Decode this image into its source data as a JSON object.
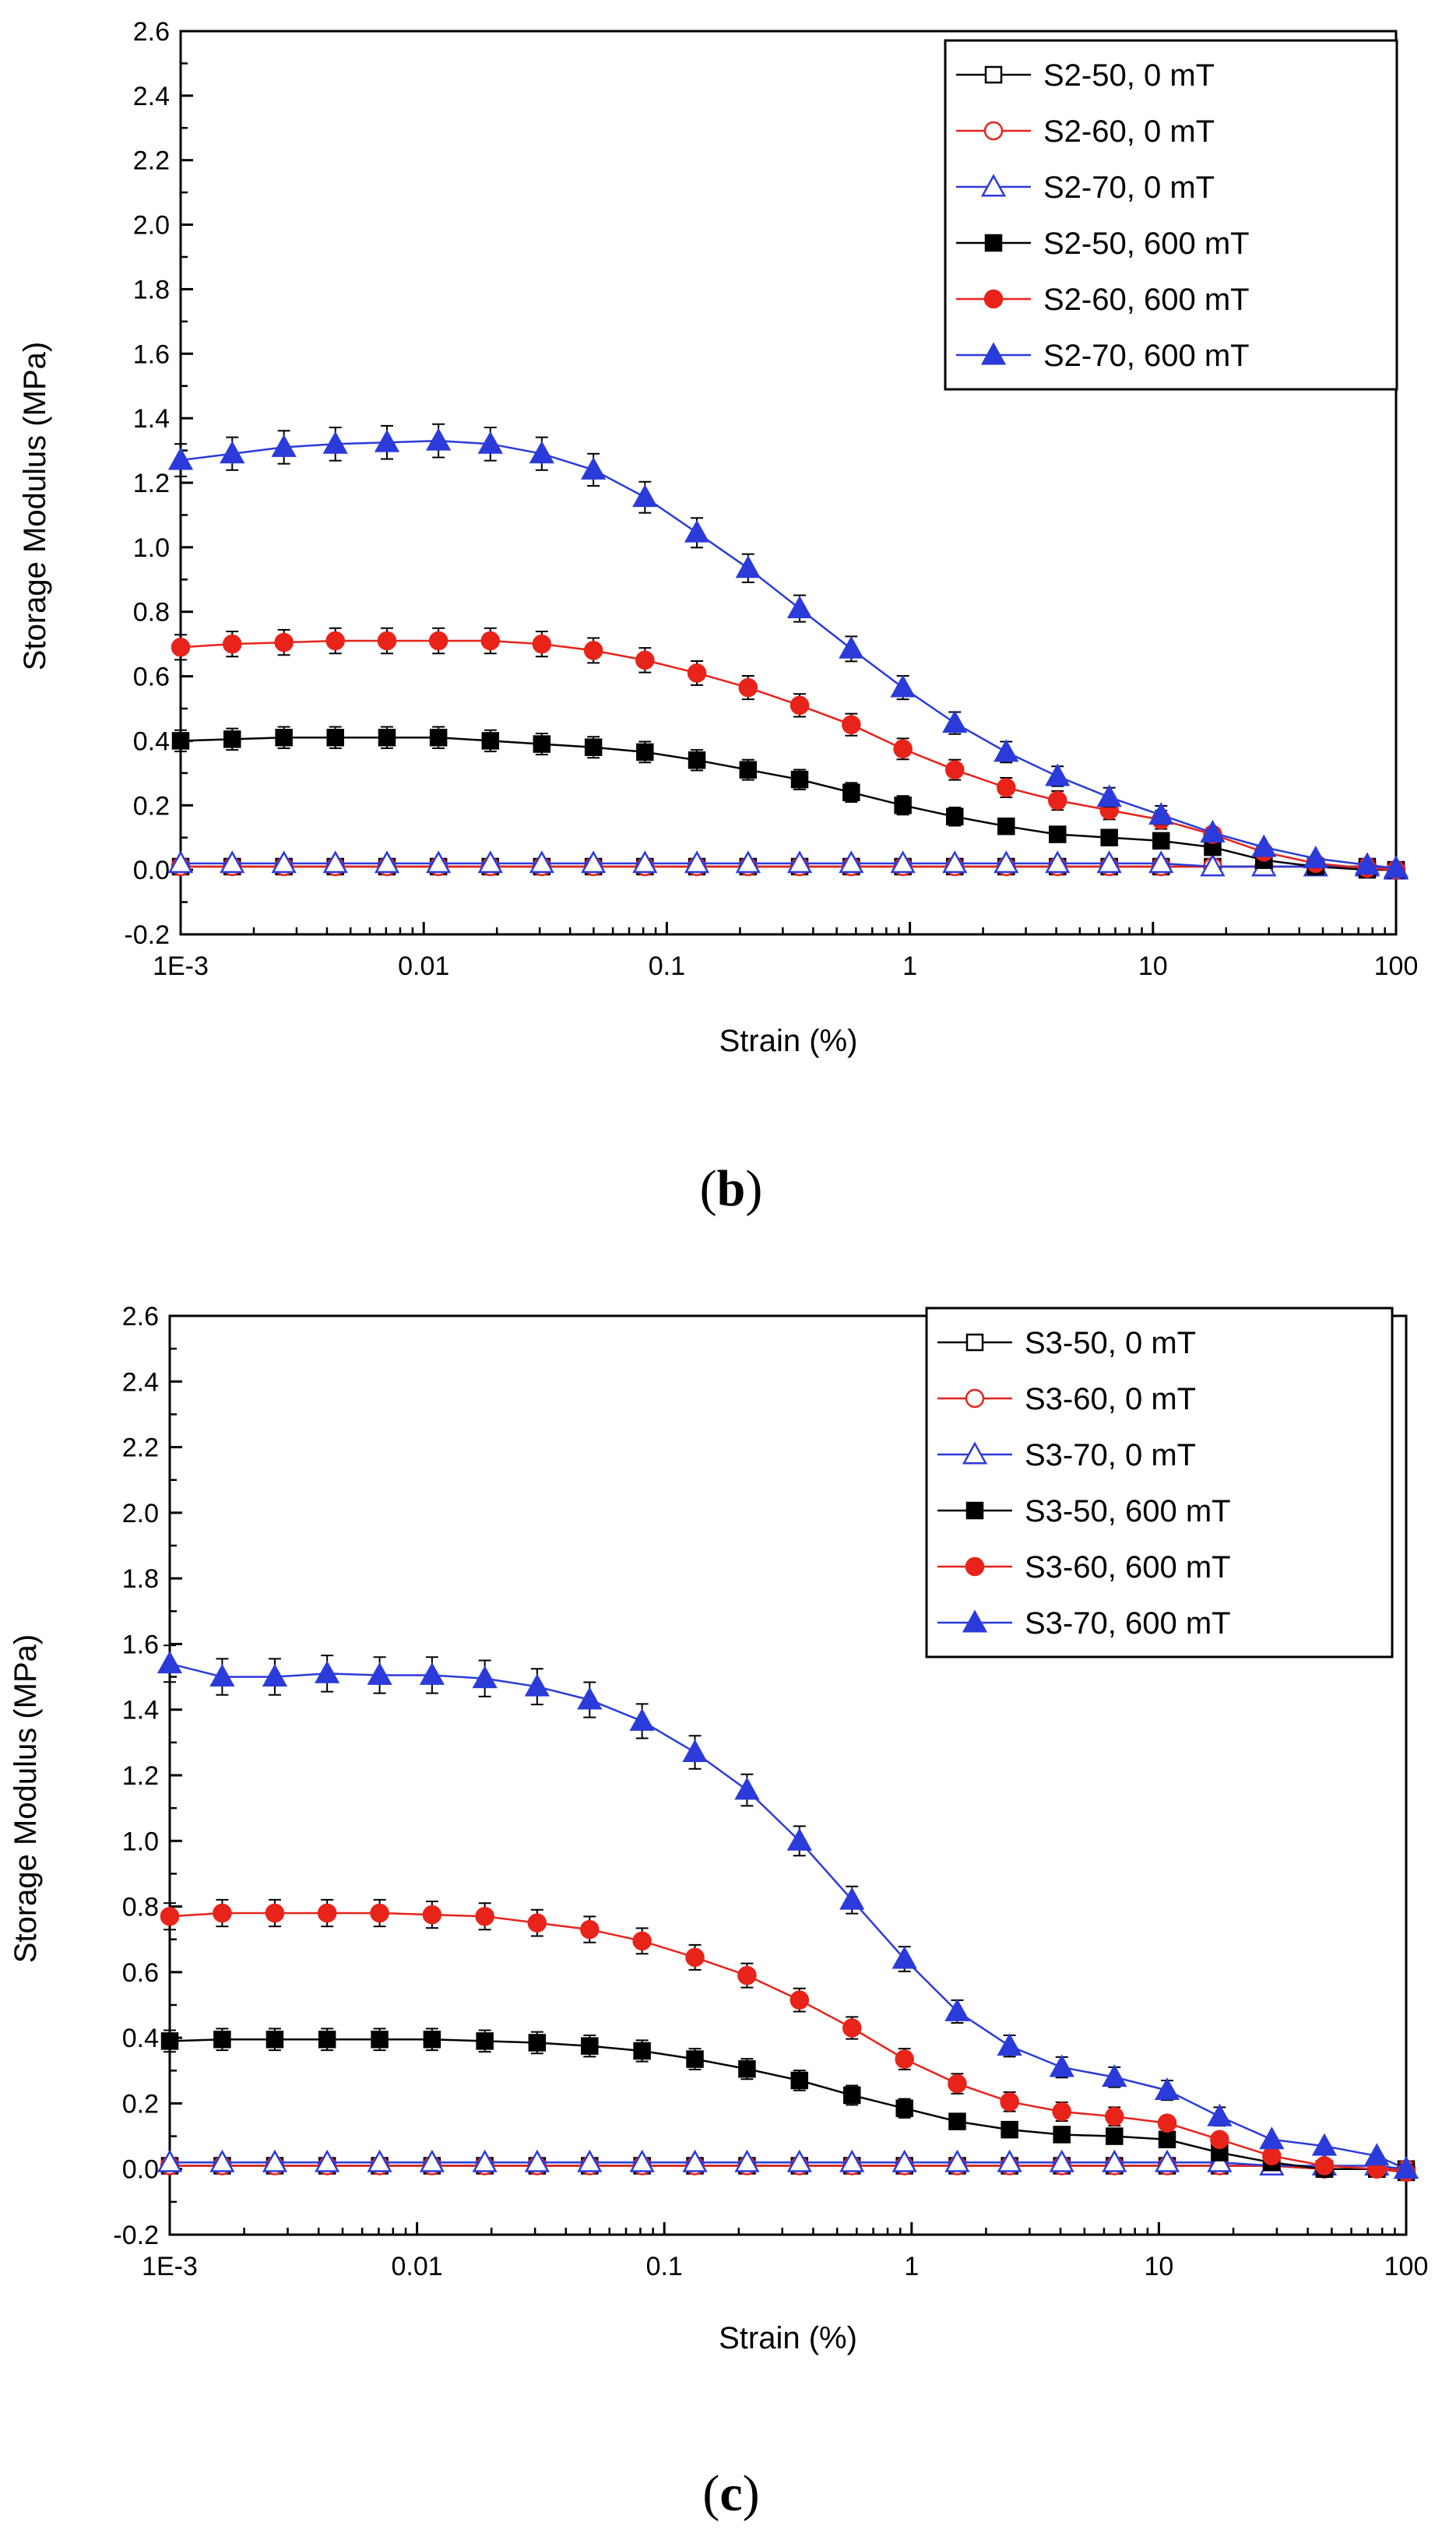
{
  "chart_data": [
    {
      "type": "line",
      "panel_label": "b",
      "xlabel": "Strain (%)",
      "ylabel": "Storage Modulus (MPa)",
      "xscale": "log",
      "xlim": [
        0.001,
        100
      ],
      "ylim": [
        -0.2,
        2.6
      ],
      "xticks": [
        {
          "value": 0.001,
          "label": "1E-3"
        },
        {
          "value": 0.01,
          "label": "0.01"
        },
        {
          "value": 0.1,
          "label": "0.1"
        },
        {
          "value": 1,
          "label": "1"
        },
        {
          "value": 10,
          "label": "10"
        },
        {
          "value": 100,
          "label": "100"
        }
      ],
      "yticks": [
        "-0.2",
        "0.0",
        "0.2",
        "0.4",
        "0.6",
        "0.8",
        "1.0",
        "1.2",
        "1.4",
        "1.6",
        "1.8",
        "2.0",
        "2.2",
        "2.4",
        "2.6"
      ],
      "legend_position": "top-right",
      "x": [
        0.001,
        0.00163,
        0.00266,
        0.00433,
        0.00706,
        0.0115,
        0.0188,
        0.0306,
        0.0499,
        0.0813,
        0.133,
        0.216,
        0.352,
        0.574,
        0.936,
        1.53,
        2.49,
        4.05,
        6.61,
        10.8,
        17.6,
        28.6,
        46.7,
        76.1,
        100
      ],
      "series": [
        {
          "name": "S2-50, 0 mT",
          "color": "#000000",
          "marker": "square-open",
          "values": [
            0.01,
            0.01,
            0.01,
            0.01,
            0.01,
            0.01,
            0.01,
            0.01,
            0.01,
            0.01,
            0.01,
            0.01,
            0.01,
            0.01,
            0.01,
            0.01,
            0.01,
            0.01,
            0.01,
            0.01,
            0.01,
            0.01,
            0.01,
            0.01,
            0.0
          ]
        },
        {
          "name": "S2-60, 0 mT",
          "color": "#e8231a",
          "marker": "circle-open",
          "values": [
            0.01,
            0.01,
            0.01,
            0.01,
            0.01,
            0.01,
            0.01,
            0.01,
            0.01,
            0.01,
            0.01,
            0.01,
            0.01,
            0.01,
            0.01,
            0.01,
            0.01,
            0.01,
            0.01,
            0.01,
            0.01,
            0.01,
            0.01,
            0.01,
            0.0
          ]
        },
        {
          "name": "S2-70, 0 mT",
          "color": "#2b3bd9",
          "marker": "triangle-open",
          "values": [
            0.02,
            0.02,
            0.02,
            0.02,
            0.02,
            0.02,
            0.02,
            0.02,
            0.02,
            0.02,
            0.02,
            0.02,
            0.02,
            0.02,
            0.02,
            0.02,
            0.02,
            0.02,
            0.02,
            0.02,
            0.01,
            0.01,
            0.01,
            0.01,
            0.0
          ]
        },
        {
          "name": "S2-50, 600 mT",
          "color": "#000000",
          "marker": "square-filled",
          "values": [
            0.4,
            0.405,
            0.41,
            0.41,
            0.41,
            0.41,
            0.4,
            0.39,
            0.38,
            0.365,
            0.34,
            0.31,
            0.28,
            0.24,
            0.2,
            0.165,
            0.135,
            0.11,
            0.1,
            0.09,
            0.07,
            0.03,
            0.01,
            0.0,
            0.0
          ]
        },
        {
          "name": "S2-60, 600 mT",
          "color": "#e8231a",
          "marker": "circle-filled",
          "values": [
            0.69,
            0.7,
            0.705,
            0.71,
            0.71,
            0.71,
            0.71,
            0.7,
            0.68,
            0.65,
            0.61,
            0.565,
            0.51,
            0.45,
            0.375,
            0.31,
            0.255,
            0.215,
            0.185,
            0.155,
            0.11,
            0.055,
            0.02,
            0.005,
            0.0
          ]
        },
        {
          "name": "S2-70, 600 mT",
          "color": "#2b3bd9",
          "marker": "triangle-filled",
          "values": [
            1.27,
            1.29,
            1.31,
            1.32,
            1.325,
            1.33,
            1.32,
            1.29,
            1.24,
            1.155,
            1.045,
            0.935,
            0.81,
            0.685,
            0.565,
            0.455,
            0.365,
            0.29,
            0.225,
            0.17,
            0.115,
            0.07,
            0.035,
            0.015,
            0.005
          ]
        }
      ]
    },
    {
      "type": "line",
      "panel_label": "c",
      "xlabel": "Strain (%)",
      "ylabel": "Storage Modulus (MPa)",
      "xscale": "log",
      "xlim": [
        0.001,
        100
      ],
      "ylim": [
        -0.2,
        2.6
      ],
      "xticks": [
        {
          "value": 0.001,
          "label": "1E-3"
        },
        {
          "value": 0.01,
          "label": "0.01"
        },
        {
          "value": 0.1,
          "label": "0.1"
        },
        {
          "value": 1,
          "label": "1"
        },
        {
          "value": 10,
          "label": "10"
        },
        {
          "value": 100,
          "label": "100"
        }
      ],
      "yticks": [
        "-0.2",
        "0.0",
        "0.2",
        "0.4",
        "0.6",
        "0.8",
        "1.0",
        "1.2",
        "1.4",
        "1.6",
        "1.8",
        "2.0",
        "2.2",
        "2.4",
        "2.6"
      ],
      "legend_position": "top-right",
      "x": [
        0.001,
        0.00163,
        0.00266,
        0.00433,
        0.00706,
        0.0115,
        0.0188,
        0.0306,
        0.0499,
        0.0813,
        0.133,
        0.216,
        0.352,
        0.574,
        0.936,
        1.53,
        2.49,
        4.05,
        6.61,
        10.8,
        17.6,
        28.6,
        46.7,
        76.1,
        100
      ],
      "series": [
        {
          "name": "S3-50, 0 mT",
          "color": "#000000",
          "marker": "square-open",
          "values": [
            0.01,
            0.01,
            0.01,
            0.01,
            0.01,
            0.01,
            0.01,
            0.01,
            0.01,
            0.01,
            0.01,
            0.01,
            0.01,
            0.01,
            0.01,
            0.01,
            0.01,
            0.01,
            0.01,
            0.01,
            0.01,
            0.01,
            0.0,
            0.0,
            0.0
          ]
        },
        {
          "name": "S3-60, 0 mT",
          "color": "#e8231a",
          "marker": "circle-open",
          "values": [
            0.01,
            0.01,
            0.01,
            0.01,
            0.01,
            0.01,
            0.01,
            0.01,
            0.01,
            0.01,
            0.01,
            0.01,
            0.01,
            0.01,
            0.01,
            0.01,
            0.01,
            0.01,
            0.01,
            0.01,
            0.01,
            0.01,
            0.0,
            0.0,
            0.0
          ]
        },
        {
          "name": "S3-70, 0 mT",
          "color": "#2b3bd9",
          "marker": "triangle-open",
          "values": [
            0.02,
            0.02,
            0.02,
            0.02,
            0.02,
            0.02,
            0.02,
            0.02,
            0.02,
            0.02,
            0.02,
            0.02,
            0.02,
            0.02,
            0.02,
            0.02,
            0.02,
            0.02,
            0.02,
            0.02,
            0.02,
            0.01,
            0.01,
            0.01,
            0.0
          ]
        },
        {
          "name": "S3-50, 600 mT",
          "color": "#000000",
          "marker": "square-filled",
          "values": [
            0.39,
            0.395,
            0.395,
            0.395,
            0.395,
            0.395,
            0.39,
            0.385,
            0.375,
            0.36,
            0.335,
            0.305,
            0.27,
            0.225,
            0.185,
            0.145,
            0.12,
            0.105,
            0.1,
            0.09,
            0.05,
            0.02,
            0.0,
            0.0,
            -0.01
          ]
        },
        {
          "name": "S3-60, 600 mT",
          "color": "#e8231a",
          "marker": "circle-filled",
          "values": [
            0.77,
            0.78,
            0.78,
            0.78,
            0.78,
            0.775,
            0.77,
            0.75,
            0.73,
            0.695,
            0.645,
            0.59,
            0.515,
            0.43,
            0.335,
            0.26,
            0.205,
            0.175,
            0.16,
            0.14,
            0.09,
            0.04,
            0.01,
            0.0,
            -0.01
          ]
        },
        {
          "name": "S3-70, 600 mT",
          "color": "#2b3bd9",
          "marker": "triangle-filled",
          "values": [
            1.54,
            1.5,
            1.5,
            1.51,
            1.505,
            1.505,
            1.495,
            1.47,
            1.43,
            1.365,
            1.27,
            1.155,
            1.0,
            0.82,
            0.64,
            0.48,
            0.375,
            0.31,
            0.28,
            0.24,
            0.16,
            0.09,
            0.07,
            0.04,
            0.0
          ]
        }
      ]
    }
  ],
  "captions": {
    "b": {
      "open": "(",
      "label": "b",
      "close": ")"
    },
    "c": {
      "open": "(",
      "label": "c",
      "close": ")"
    }
  }
}
